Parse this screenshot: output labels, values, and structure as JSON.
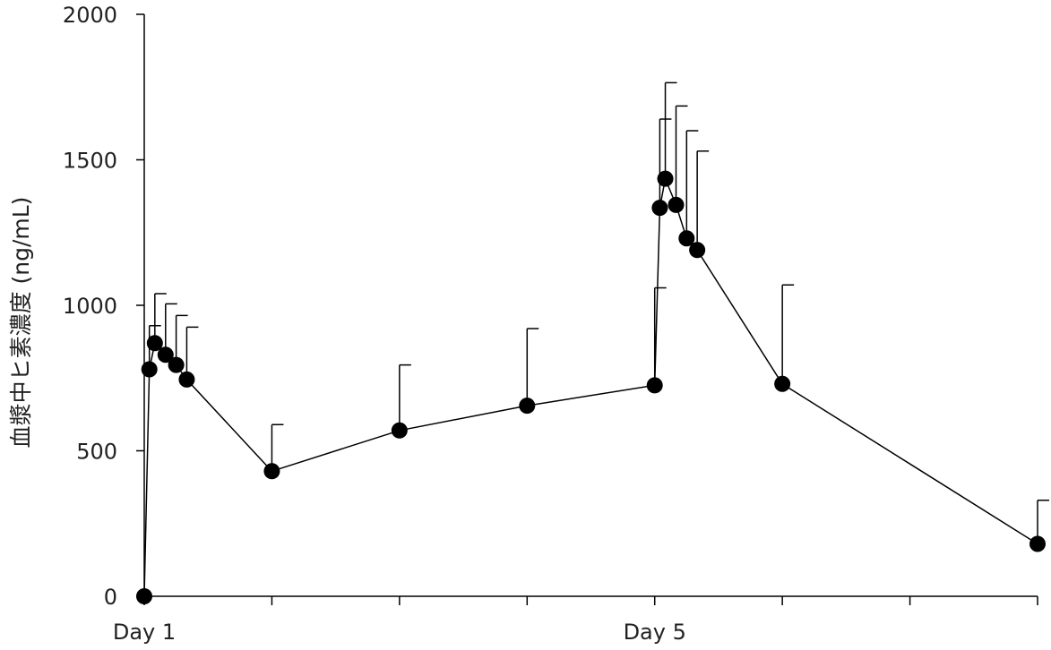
{
  "chart_data": {
    "type": "line",
    "title": "",
    "xlabel": "",
    "ylabel": "血漿中ヒ素濃度 (ng/mL)",
    "ylim": [
      0,
      2000
    ],
    "yticks": [
      0,
      500,
      1000,
      1500,
      2000
    ],
    "xlim": [
      0,
      7
    ],
    "xtick_positions": [
      0,
      1,
      2,
      3,
      4,
      5,
      6,
      7
    ],
    "xtick_labels": [
      "Day 1",
      "",
      "",
      "",
      "Day 5",
      "",
      "",
      ""
    ],
    "grid": false,
    "legend": "none",
    "series": [
      {
        "x": [
          0,
          0.04,
          0.083,
          0.167,
          0.25,
          0.333,
          1,
          2,
          3,
          4,
          4.04,
          4.083,
          4.167,
          4.25,
          4.333,
          5,
          7
        ],
        "y": [
          0,
          780,
          870,
          830,
          795,
          745,
          430,
          570,
          655,
          725,
          1335,
          1435,
          1345,
          1230,
          1190,
          730,
          180
        ],
        "error_upper": [
          null,
          930,
          1040,
          1005,
          965,
          925,
          590,
          795,
          920,
          1060,
          1640,
          1765,
          1685,
          1600,
          1530,
          1070,
          330
        ],
        "color": "#000000"
      }
    ]
  }
}
